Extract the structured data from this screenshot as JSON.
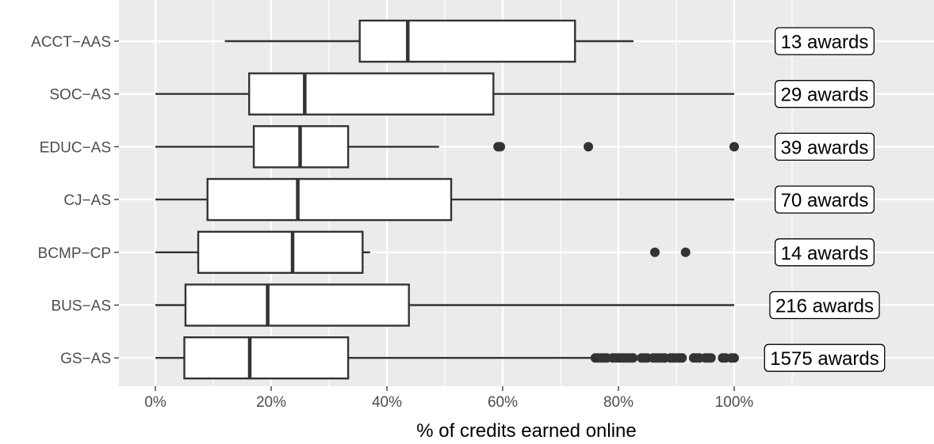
{
  "chart_data": {
    "type": "boxplot",
    "orientation": "horizontal",
    "title": "",
    "xlabel": "% of credits earned online",
    "ylabel": "",
    "xlim": [
      -0.06,
      1.24
    ],
    "x_ticks": [
      0,
      0.2,
      0.4,
      0.6,
      0.8,
      1.0
    ],
    "x_tick_labels": [
      "0%",
      "20%",
      "40%",
      "60%",
      "80%",
      "100%"
    ],
    "grid": true,
    "categories": [
      "ACCT−AAS",
      "SOC−AS",
      "EDUC−AS",
      "CJ−AS",
      "BCMP−CP",
      "BUS−AS",
      "GS−AS"
    ],
    "boxes": [
      {
        "category": "ACCT−AAS",
        "whisker_low": 0.12,
        "q1": 0.353,
        "median": 0.436,
        "q3": 0.725,
        "whisker_high": 0.826,
        "outliers": [],
        "award_label": "13 awards"
      },
      {
        "category": "SOC−AS",
        "whisker_low": 0.0,
        "q1": 0.162,
        "median": 0.258,
        "q3": 0.584,
        "whisker_high": 1.0,
        "outliers": [],
        "award_label": "29 awards"
      },
      {
        "category": "EDUC−AS",
        "whisker_low": 0.0,
        "q1": 0.17,
        "median": 0.25,
        "q3": 0.333,
        "whisker_high": 0.49,
        "outliers": [
          0.592,
          0.596,
          0.748,
          1.0
        ],
        "award_label": "39 awards"
      },
      {
        "category": "CJ−AS",
        "whisker_low": 0.0,
        "q1": 0.09,
        "median": 0.246,
        "q3": 0.511,
        "whisker_high": 1.0,
        "outliers": [],
        "award_label": "70 awards"
      },
      {
        "category": "BCMP−CP",
        "whisker_low": 0.0,
        "q1": 0.074,
        "median": 0.237,
        "q3": 0.358,
        "whisker_high": 0.371,
        "outliers": [
          0.863,
          0.916
        ],
        "award_label": "14 awards"
      },
      {
        "category": "BUS−AS",
        "whisker_low": 0.0,
        "q1": 0.052,
        "median": 0.194,
        "q3": 0.438,
        "whisker_high": 1.0,
        "outliers": [],
        "award_label": "216 awards"
      },
      {
        "category": "GS−AS",
        "whisker_low": 0.0,
        "q1": 0.05,
        "median": 0.163,
        "q3": 0.333,
        "whisker_high": 0.755,
        "outliers": [
          0.76,
          0.765,
          0.77,
          0.775,
          0.78,
          0.79,
          0.795,
          0.8,
          0.805,
          0.81,
          0.815,
          0.82,
          0.825,
          0.84,
          0.845,
          0.85,
          0.86,
          0.865,
          0.87,
          0.875,
          0.88,
          0.89,
          0.895,
          0.9,
          0.905,
          0.91,
          0.93,
          0.935,
          0.94,
          0.95,
          0.955,
          0.96,
          0.98,
          0.985,
          0.995,
          1.0
        ],
        "award_label": "1575 awards"
      }
    ]
  }
}
